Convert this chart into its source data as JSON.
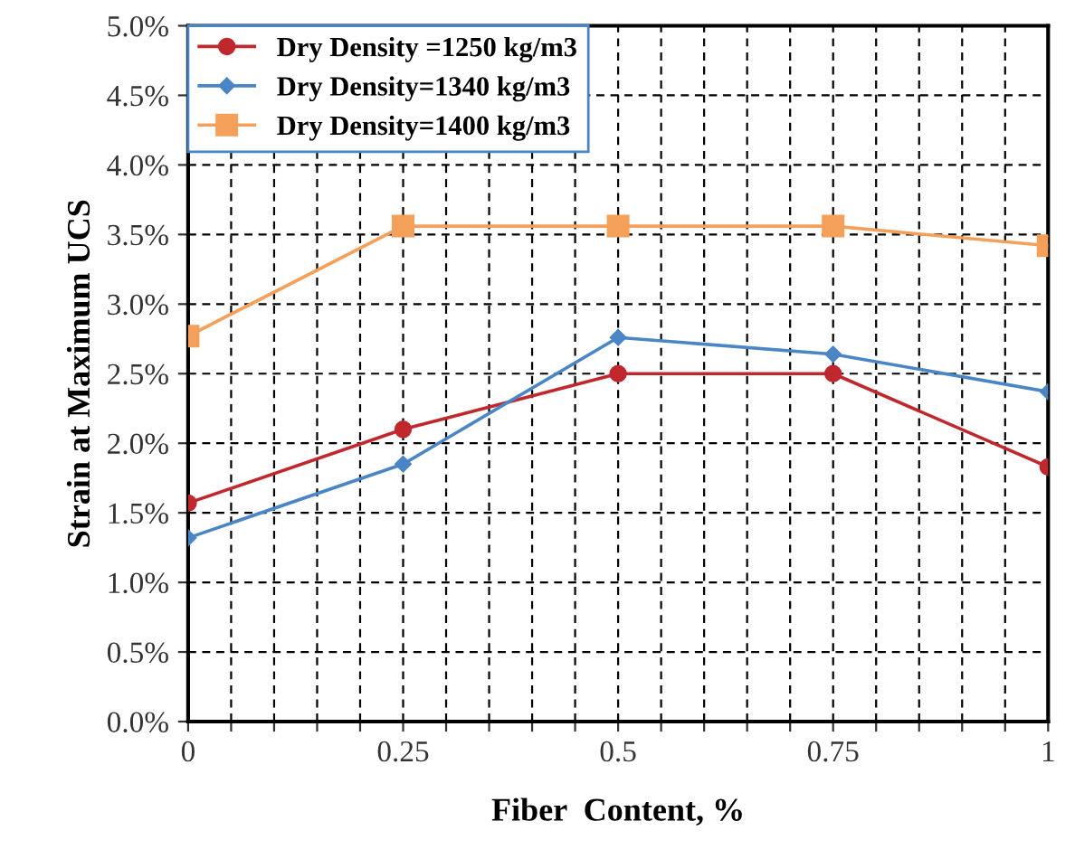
{
  "chart_data": {
    "type": "line",
    "xlabel": "Fiber  Content, %",
    "ylabel": "Strain at Maximum UCS",
    "x": [
      0,
      0.25,
      0.5,
      0.75,
      1
    ],
    "series": [
      {
        "name": "Dry Density =1250 kg/m3",
        "color": "#c0282d",
        "marker": "circle",
        "values": [
          1.57,
          2.1,
          2.5,
          2.5,
          1.83
        ]
      },
      {
        "name": "Dry Density=1340 kg/m3",
        "color": "#4a86c5",
        "marker": "diamond",
        "values": [
          1.32,
          1.85,
          2.76,
          2.64,
          2.37
        ]
      },
      {
        "name": "Dry Density=1400 kg/m3",
        "color": "#f5a05a",
        "marker": "square",
        "values": [
          2.77,
          3.56,
          3.56,
          3.56,
          3.42
        ]
      }
    ],
    "xlim": [
      0,
      1
    ],
    "xticks": [
      0,
      {
        "value": 0.05,
        "label": null
      },
      {
        "value": 0.1,
        "label": null
      },
      {
        "value": 0.15,
        "label": null
      },
      {
        "value": 0.2,
        "label": null
      },
      0.25,
      {
        "value": 0.3,
        "label": null
      },
      {
        "value": 0.35,
        "label": null
      },
      {
        "value": 0.4,
        "label": null
      },
      {
        "value": 0.45,
        "label": null
      },
      0.5,
      {
        "value": 0.55,
        "label": null
      },
      {
        "value": 0.6,
        "label": null
      },
      {
        "value": 0.65,
        "label": null
      },
      {
        "value": 0.7,
        "label": null
      },
      0.75,
      {
        "value": 0.8,
        "label": null
      },
      {
        "value": 0.85,
        "label": null
      },
      {
        "value": 0.9,
        "label": null
      },
      {
        "value": 0.95,
        "label": null
      },
      1
    ],
    "ylim": [
      0,
      5
    ],
    "yticks": [
      {
        "value": 0,
        "label": "0.0%"
      },
      {
        "value": 0.5,
        "label": "0.5%"
      },
      {
        "value": 1,
        "label": "1.0%"
      },
      {
        "value": 1.5,
        "label": "1.5%"
      },
      {
        "value": 2,
        "label": "2.0%"
      },
      {
        "value": 2.5,
        "label": "2.5%"
      },
      {
        "value": 3,
        "label": "3.0%"
      },
      {
        "value": 3.5,
        "label": "3.5%"
      },
      {
        "value": 4,
        "label": "4.0%"
      },
      {
        "value": 4.5,
        "label": "4.5%"
      },
      {
        "value": 5,
        "label": "5.0%"
      }
    ],
    "grid": true,
    "legend": "top left",
    "line_style": "solid"
  }
}
